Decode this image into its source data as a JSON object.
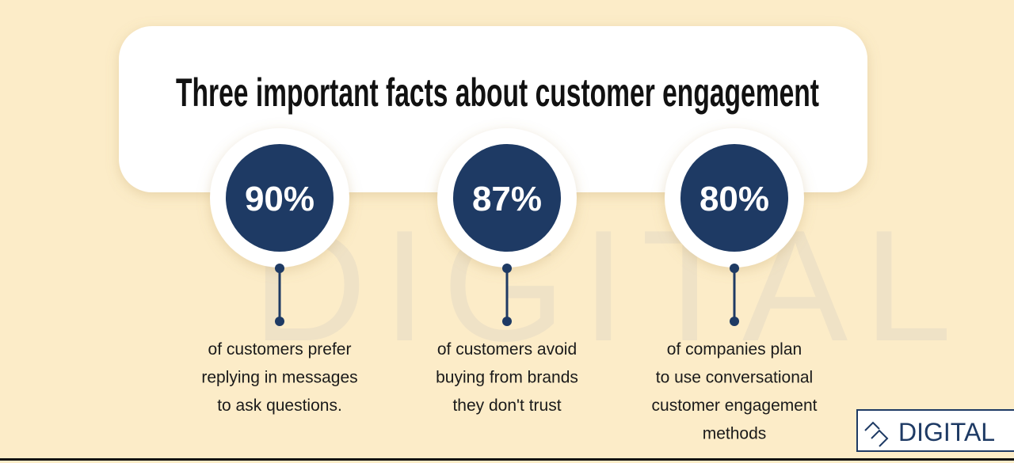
{
  "header": {
    "title": "Three important facts about customer engagement"
  },
  "watermark": "DIGITAL",
  "facts": [
    {
      "value": "90%",
      "lines": [
        "of customers prefer",
        "replying in messages",
        "to ask questions."
      ]
    },
    {
      "value": "87%",
      "lines": [
        "of customers avoid",
        "buying from brands",
        "they don't trust"
      ]
    },
    {
      "value": "80%",
      "lines": [
        "of companies plan",
        "to use conversational",
        "customer engagement",
        "methods"
      ]
    }
  ],
  "logo": {
    "text": "DIGITAL"
  }
}
